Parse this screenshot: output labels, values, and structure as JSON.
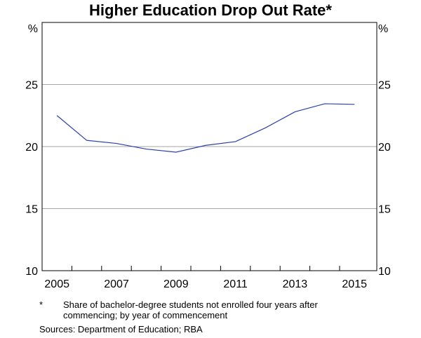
{
  "chart_data": {
    "type": "line",
    "title": "Higher Education Drop Out Rate*",
    "y_unit_left": "%",
    "y_unit_right": "%",
    "ylim": [
      10,
      30
    ],
    "yticks": [
      10,
      15,
      20,
      25
    ],
    "xlim": [
      2004.5,
      2015.75
    ],
    "xticks": [
      2005,
      2007,
      2009,
      2011,
      2013,
      2015
    ],
    "grid": true,
    "series": [
      {
        "color": "#2b3fae",
        "x": [
          2005,
          2006,
          2007,
          2008,
          2009,
          2010,
          2011,
          2012,
          2013,
          2014,
          2015
        ],
        "y": [
          22.5,
          20.5,
          20.25,
          19.8,
          19.55,
          20.1,
          20.4,
          21.5,
          22.8,
          23.45,
          23.4
        ]
      }
    ],
    "footnote_mark": "*",
    "footnote": "Share of bachelor-degree students not enrolled four years after commencing; by year of commencement",
    "sources": "Sources:  Department of Education; RBA"
  }
}
